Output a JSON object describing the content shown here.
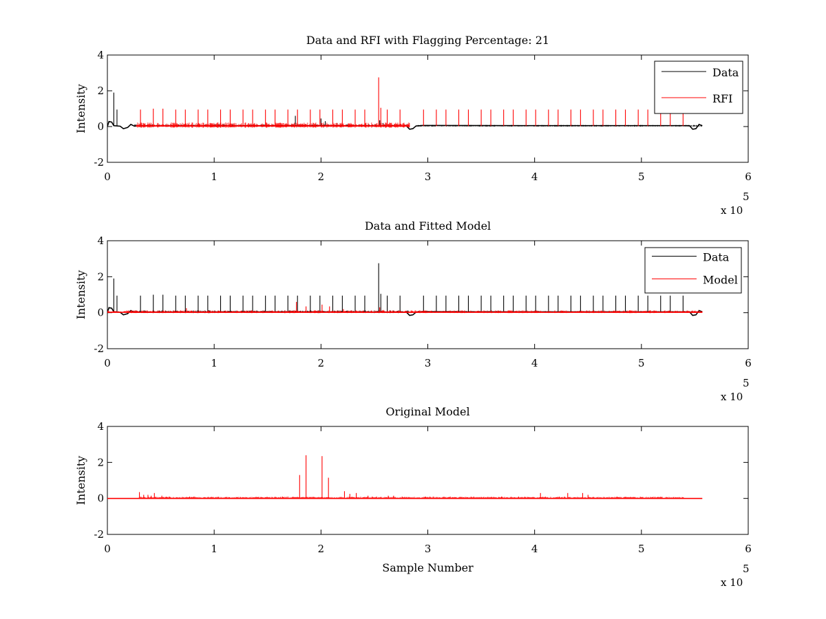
{
  "figure": {
    "background": "#ffffff"
  },
  "chart_data": [
    {
      "type": "line",
      "title": "Data and RFI with Flagging Percentage: 21",
      "xlabel": "",
      "ylabel": "Intensity",
      "xlim": [
        0,
        600000
      ],
      "ylim": [
        -2,
        4
      ],
      "xticks": [
        0,
        1,
        2,
        3,
        4,
        5,
        6
      ],
      "yticks": [
        -2,
        0,
        2,
        4
      ],
      "x_multiplier_label": "x 10",
      "x_multiplier_exp": "5",
      "grid": false,
      "legend_position": "top-right",
      "series": [
        {
          "name": "Data",
          "color": "#000000",
          "baseline": [
            [
              0,
              0
            ],
            [
              1500,
              0.28
            ],
            [
              4000,
              0.25
            ],
            [
              6000,
              0.05
            ],
            [
              12000,
              0.02
            ],
            [
              15000,
              -0.12
            ],
            [
              19000,
              -0.05
            ],
            [
              22000,
              0.12
            ],
            [
              25000,
              0.03
            ],
            [
              100000,
              0.04
            ],
            [
              200000,
              0.05
            ],
            [
              280000,
              0.03
            ],
            [
              283000,
              -0.15
            ],
            [
              286000,
              -0.12
            ],
            [
              289000,
              0.03
            ],
            [
              295000,
              0.06
            ],
            [
              400000,
              0.05
            ],
            [
              545000,
              0.05
            ],
            [
              548000,
              -0.15
            ],
            [
              551000,
              -0.12
            ],
            [
              554000,
              0.12
            ],
            [
              557000,
              0.05
            ]
          ],
          "spikes": [
            [
              6000,
              1.9
            ],
            [
              9000,
              0.95
            ],
            [
              176000,
              0.6
            ],
            [
              200000,
              0.45
            ],
            [
              204000,
              0.3
            ],
            [
              215000,
              0.2
            ],
            [
              255000,
              0.35
            ],
            [
              258000,
              0.2
            ]
          ],
          "clutter": [
            [
              25000,
              283000,
              0.1
            ],
            [
              289000,
              557000,
              0.06
            ]
          ]
        },
        {
          "name": "RFI",
          "color": "#ff0000",
          "baseline": [
            [
              27000,
              0.03
            ],
            [
              283000,
              0.03
            ]
          ],
          "spikes": [
            [
              31000,
              0.95
            ],
            [
              43000,
              1.0
            ],
            [
              52000,
              1.0
            ],
            [
              64000,
              0.95
            ],
            [
              73000,
              0.95
            ],
            [
              85000,
              0.95
            ],
            [
              94000,
              0.95
            ],
            [
              106000,
              0.95
            ],
            [
              115000,
              0.95
            ],
            [
              127000,
              0.95
            ],
            [
              136000,
              0.95
            ],
            [
              148000,
              0.95
            ],
            [
              157000,
              0.95
            ],
            [
              169000,
              0.95
            ],
            [
              178000,
              0.95
            ],
            [
              190000,
              0.95
            ],
            [
              199000,
              0.95
            ],
            [
              211000,
              0.95
            ],
            [
              220000,
              0.95
            ],
            [
              232000,
              0.95
            ],
            [
              241000,
              0.95
            ],
            [
              254000,
              2.75
            ],
            [
              256000,
              1.05
            ],
            [
              262000,
              0.95
            ],
            [
              274000,
              0.95
            ],
            [
              296000,
              0.95
            ],
            [
              308000,
              0.95
            ],
            [
              317000,
              0.95
            ],
            [
              329000,
              0.95
            ],
            [
              338000,
              0.95
            ],
            [
              350000,
              0.95
            ],
            [
              359000,
              0.95
            ],
            [
              371000,
              0.95
            ],
            [
              380000,
              0.95
            ],
            [
              392000,
              0.95
            ],
            [
              401000,
              0.95
            ],
            [
              413000,
              0.95
            ],
            [
              422000,
              0.95
            ],
            [
              434000,
              0.95
            ],
            [
              443000,
              0.95
            ],
            [
              455000,
              0.95
            ],
            [
              464000,
              0.95
            ],
            [
              476000,
              0.95
            ],
            [
              485000,
              0.95
            ],
            [
              497000,
              0.95
            ],
            [
              506000,
              0.95
            ],
            [
              518000,
              0.95
            ],
            [
              527000,
              0.95
            ],
            [
              539000,
              0.95
            ]
          ],
          "clutter": [
            [
              27000,
              283000,
              0.2
            ]
          ]
        }
      ]
    },
    {
      "type": "line",
      "title": "Data and Fitted Model",
      "xlabel": "",
      "ylabel": "Intensity",
      "xlim": [
        0,
        600000
      ],
      "ylim": [
        -2,
        4
      ],
      "xticks": [
        0,
        1,
        2,
        3,
        4,
        5,
        6
      ],
      "yticks": [
        -2,
        0,
        2,
        4
      ],
      "x_multiplier_label": "x 10",
      "x_multiplier_exp": "5",
      "grid": false,
      "legend_position": "top-right",
      "series": [
        {
          "name": "Data",
          "color": "#000000",
          "baseline": [
            [
              0,
              0
            ],
            [
              1500,
              0.28
            ],
            [
              4000,
              0.25
            ],
            [
              6000,
              0.05
            ],
            [
              12000,
              0.02
            ],
            [
              15000,
              -0.12
            ],
            [
              19000,
              -0.05
            ],
            [
              22000,
              0.12
            ],
            [
              25000,
              0.03
            ],
            [
              100000,
              0.04
            ],
            [
              200000,
              0.05
            ],
            [
              280000,
              0.03
            ],
            [
              283000,
              -0.15
            ],
            [
              286000,
              -0.12
            ],
            [
              289000,
              0.03
            ],
            [
              295000,
              0.06
            ],
            [
              400000,
              0.05
            ],
            [
              545000,
              0.05
            ],
            [
              548000,
              -0.15
            ],
            [
              551000,
              -0.12
            ],
            [
              554000,
              0.12
            ],
            [
              557000,
              0.05
            ]
          ],
          "spikes": [
            [
              6000,
              1.9
            ],
            [
              9000,
              0.95
            ],
            [
              31000,
              0.95
            ],
            [
              43000,
              1.0
            ],
            [
              52000,
              1.0
            ],
            [
              64000,
              0.95
            ],
            [
              73000,
              0.95
            ],
            [
              85000,
              0.95
            ],
            [
              94000,
              0.95
            ],
            [
              106000,
              0.95
            ],
            [
              115000,
              0.95
            ],
            [
              127000,
              0.95
            ],
            [
              136000,
              0.95
            ],
            [
              148000,
              0.95
            ],
            [
              157000,
              0.95
            ],
            [
              169000,
              0.95
            ],
            [
              178000,
              0.95
            ],
            [
              190000,
              0.95
            ],
            [
              199000,
              0.95
            ],
            [
              211000,
              0.95
            ],
            [
              220000,
              0.95
            ],
            [
              232000,
              0.95
            ],
            [
              241000,
              0.95
            ],
            [
              254000,
              2.75
            ],
            [
              256000,
              1.05
            ],
            [
              262000,
              0.95
            ],
            [
              274000,
              0.95
            ],
            [
              296000,
              0.95
            ],
            [
              308000,
              0.95
            ],
            [
              317000,
              0.95
            ],
            [
              329000,
              0.95
            ],
            [
              338000,
              0.95
            ],
            [
              350000,
              0.95
            ],
            [
              359000,
              0.95
            ],
            [
              371000,
              0.95
            ],
            [
              380000,
              0.95
            ],
            [
              392000,
              0.95
            ],
            [
              401000,
              0.95
            ],
            [
              413000,
              0.95
            ],
            [
              422000,
              0.95
            ],
            [
              434000,
              0.95
            ],
            [
              443000,
              0.95
            ],
            [
              455000,
              0.95
            ],
            [
              464000,
              0.95
            ],
            [
              476000,
              0.95
            ],
            [
              485000,
              0.95
            ],
            [
              497000,
              0.95
            ],
            [
              506000,
              0.95
            ],
            [
              518000,
              0.95
            ],
            [
              527000,
              0.95
            ],
            [
              539000,
              0.95
            ]
          ],
          "clutter": [
            [
              25000,
              283000,
              0.1
            ],
            [
              289000,
              557000,
              0.06
            ]
          ]
        },
        {
          "name": "Model",
          "color": "#ff0000",
          "baseline": [
            [
              0,
              0.02
            ],
            [
              557000,
              0.02
            ]
          ],
          "spikes": [
            [
              74000,
              0.25
            ],
            [
              177000,
              0.6
            ],
            [
              186000,
              0.35
            ],
            [
              201000,
              0.45
            ],
            [
              208000,
              0.35
            ],
            [
              221000,
              0.2
            ],
            [
              255000,
              0.3
            ],
            [
              258000,
              0.15
            ]
          ],
          "clutter": [
            [
              0,
              557000,
              0.1
            ]
          ]
        }
      ]
    },
    {
      "type": "line",
      "title": "Original Model",
      "xlabel": "Sample Number",
      "ylabel": "Intensity",
      "xlim": [
        0,
        600000
      ],
      "ylim": [
        -2,
        4
      ],
      "xticks": [
        0,
        1,
        2,
        3,
        4,
        5,
        6
      ],
      "yticks": [
        -2,
        0,
        2,
        4
      ],
      "x_multiplier_label": "x 10",
      "x_multiplier_exp": "5",
      "grid": false,
      "legend_position": "none",
      "series": [
        {
          "name": "",
          "color": "#ff0000",
          "baseline": [
            [
              0,
              0
            ],
            [
              557000,
              0
            ]
          ],
          "spikes": [
            [
              30000,
              0.35
            ],
            [
              34000,
              0.2
            ],
            [
              38000,
              0.2
            ],
            [
              41000,
              0.15
            ],
            [
              44000,
              0.3
            ],
            [
              51000,
              0.15
            ],
            [
              55000,
              0.1
            ],
            [
              58000,
              0.1
            ],
            [
              77000,
              0.1
            ],
            [
              81000,
              0.1
            ],
            [
              99000,
              0.05
            ],
            [
              119000,
              0.05
            ],
            [
              141000,
              0.05
            ],
            [
              164000,
              0.1
            ],
            [
              169000,
              0.1
            ],
            [
              180000,
              1.3
            ],
            [
              186000,
              2.4
            ],
            [
              201000,
              2.35
            ],
            [
              207000,
              1.15
            ],
            [
              222000,
              0.4
            ],
            [
              227000,
              0.25
            ],
            [
              233000,
              0.3
            ],
            [
              244000,
              0.15
            ],
            [
              248000,
              0.1
            ],
            [
              252000,
              0.1
            ],
            [
              263000,
              0.15
            ],
            [
              268000,
              0.15
            ],
            [
              276000,
              0.1
            ],
            [
              298000,
              0.1
            ],
            [
              302000,
              0.1
            ],
            [
              321000,
              0.1
            ],
            [
              343000,
              0.1
            ],
            [
              362000,
              0.05
            ],
            [
              369000,
              0.1
            ],
            [
              385000,
              0.1
            ],
            [
              405000,
              0.05
            ],
            [
              423000,
              0.1
            ],
            [
              428000,
              0.1
            ],
            [
              442000,
              0.05
            ],
            [
              446000,
              0.05
            ],
            [
              463000,
              0.05
            ],
            [
              468000,
              0.05
            ],
            [
              478000,
              0.05
            ],
            [
              485000,
              0.05
            ],
            [
              523000,
              0.05
            ],
            [
              539000,
              0.05
            ],
            [
              412000,
              0.05
            ],
            [
              506000,
              0.05
            ],
            [
              431000,
              0.3
            ],
            [
              445000,
              0.3
            ],
            [
              450000,
              0.2
            ],
            [
              305000,
              0.1
            ],
            [
              285000,
              0.05
            ],
            [
              405500,
              0.3
            ],
            [
              410000,
              0.1
            ]
          ],
          "clutter": [
            [
              29000,
              540000,
              0.06
            ]
          ]
        }
      ]
    }
  ]
}
